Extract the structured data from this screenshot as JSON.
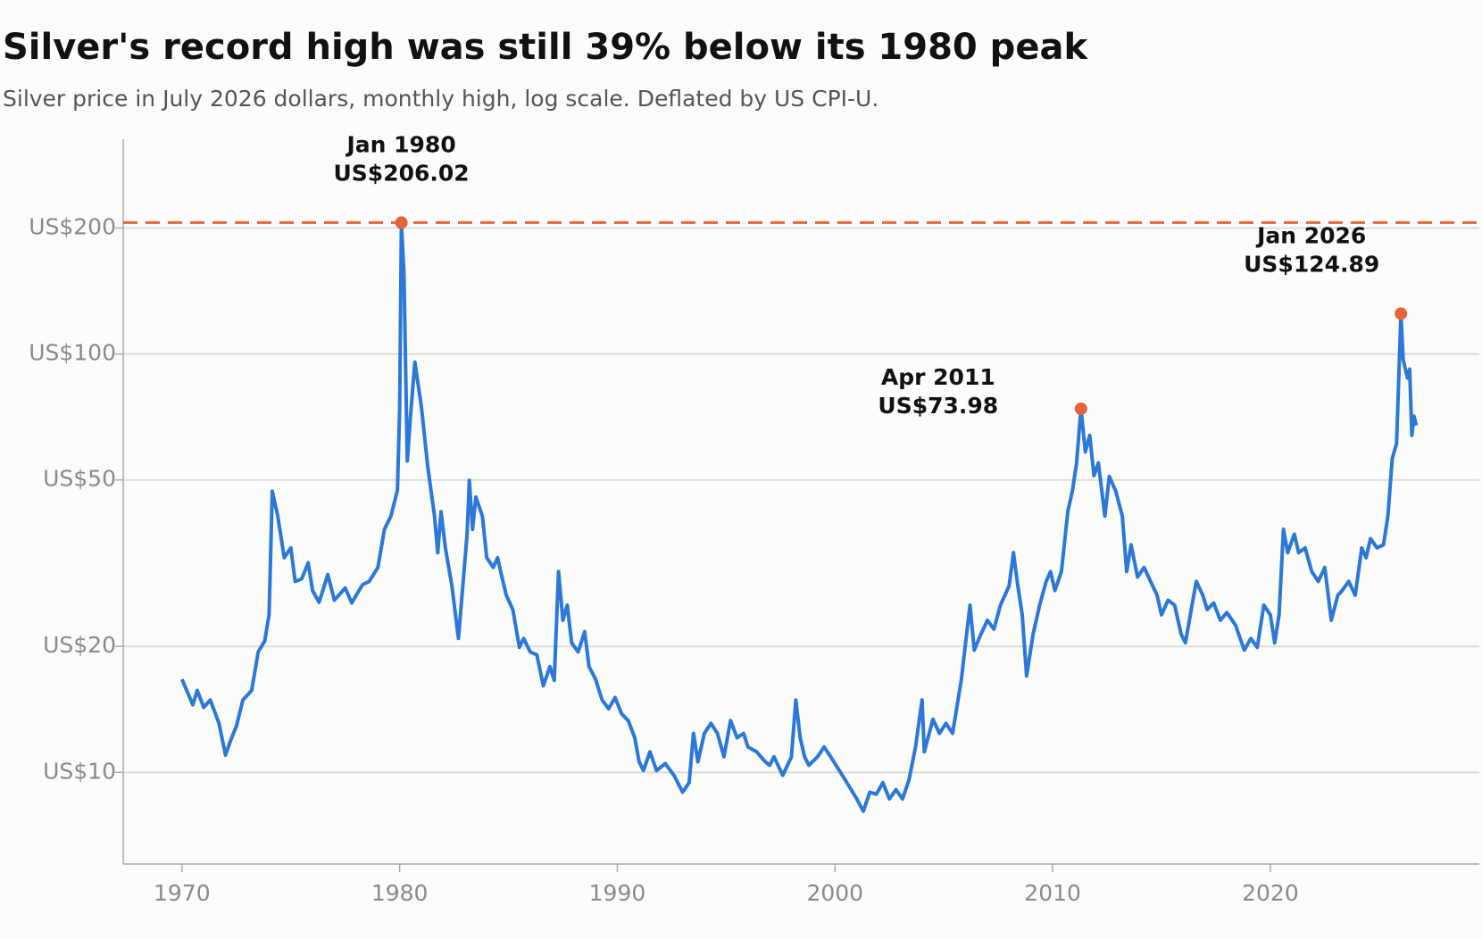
{
  "chart_data": {
    "type": "line",
    "title": "Silver's record high was still 39% below its 1980 peak",
    "subtitle": "Silver price in July 2026 dollars, monthly high, log scale. Deflated by US CPI-U.",
    "log_scale": true,
    "grid": true,
    "xlim": [
      1967.3,
      2029.6
    ],
    "xticks": [
      1970,
      1980,
      1990,
      2000,
      2010,
      2020
    ],
    "ylim": [
      6.04,
      326
    ],
    "yticks": [
      {
        "value": 10,
        "label": "US$10"
      },
      {
        "value": 20,
        "label": "US$20"
      },
      {
        "value": 50,
        "label": "US$50"
      },
      {
        "value": 100,
        "label": "US$100"
      },
      {
        "value": 200,
        "label": "US$200"
      }
    ],
    "series": [
      {
        "name": "Silver price",
        "color": "#2b78d8",
        "x": [
          1970.0,
          1970.5,
          1970.7,
          1971.0,
          1971.3,
          1971.7,
          1972.0,
          1972.2,
          1972.5,
          1972.8,
          1973.2,
          1973.5,
          1973.8,
          1974.0,
          1974.15,
          1974.4,
          1974.7,
          1975.0,
          1975.2,
          1975.5,
          1975.8,
          1976.0,
          1976.3,
          1976.7,
          1977.0,
          1977.5,
          1977.8,
          1978.0,
          1978.3,
          1978.6,
          1979.0,
          1979.3,
          1979.6,
          1979.9,
          1980.0,
          1980.08,
          1980.2,
          1980.35,
          1980.5,
          1980.7,
          1981.0,
          1981.3,
          1981.6,
          1981.75,
          1981.9,
          1982.1,
          1982.4,
          1982.7,
          1982.9,
          1983.1,
          1983.2,
          1983.35,
          1983.5,
          1983.8,
          1984.0,
          1984.3,
          1984.5,
          1984.7,
          1984.9,
          1985.2,
          1985.5,
          1985.7,
          1986.0,
          1986.3,
          1986.6,
          1986.9,
          1987.1,
          1987.3,
          1987.5,
          1987.7,
          1987.9,
          1988.2,
          1988.5,
          1988.7,
          1989.0,
          1989.3,
          1989.6,
          1989.9,
          1990.2,
          1990.5,
          1990.8,
          1991.0,
          1991.2,
          1991.5,
          1991.8,
          1992.2,
          1992.6,
          1993.0,
          1993.3,
          1993.5,
          1993.7,
          1994.0,
          1994.3,
          1994.6,
          1994.9,
          1995.2,
          1995.5,
          1995.8,
          1996.0,
          1996.4,
          1996.8,
          1997.0,
          1997.2,
          1997.6,
          1998.0,
          1998.2,
          1998.4,
          1998.6,
          1998.8,
          1999.2,
          1999.5,
          1999.8,
          2000.2,
          2000.6,
          2001.0,
          2001.3,
          2001.6,
          2001.9,
          2002.2,
          2002.5,
          2002.8,
          2003.1,
          2003.4,
          2003.7,
          2004.0,
          2004.1,
          2004.5,
          2004.8,
          2005.1,
          2005.4,
          2005.8,
          2006.2,
          2006.4,
          2006.7,
          2007.0,
          2007.3,
          2007.6,
          2008.0,
          2008.2,
          2008.4,
          2008.6,
          2008.8,
          2009.1,
          2009.4,
          2009.7,
          2009.9,
          2010.1,
          2010.4,
          2010.7,
          2010.9,
          2011.1,
          2011.3,
          2011.5,
          2011.7,
          2011.9,
          2012.1,
          2012.4,
          2012.6,
          2012.9,
          2013.2,
          2013.4,
          2013.6,
          2013.9,
          2014.2,
          2014.5,
          2014.8,
          2015.0,
          2015.3,
          2015.6,
          2015.9,
          2016.1,
          2016.4,
          2016.6,
          2016.9,
          2017.1,
          2017.4,
          2017.7,
          2018.0,
          2018.4,
          2018.8,
          2019.1,
          2019.4,
          2019.7,
          2020.0,
          2020.2,
          2020.4,
          2020.6,
          2020.8,
          2021.1,
          2021.3,
          2021.6,
          2021.9,
          2022.2,
          2022.5,
          2022.8,
          2023.1,
          2023.3,
          2023.6,
          2023.9,
          2024.2,
          2024.4,
          2024.6,
          2024.9,
          2025.2,
          2025.4,
          2025.6,
          2025.8,
          2026.0,
          2026.1,
          2026.3,
          2026.4,
          2026.5,
          2026.6,
          2026.7
        ],
        "values": [
          16.7,
          14.5,
          15.7,
          14.3,
          14.9,
          13.1,
          11.0,
          11.8,
          12.9,
          14.9,
          15.7,
          19.4,
          20.6,
          23.8,
          47,
          41,
          32.6,
          34.4,
          28.6,
          29,
          31.7,
          27.2,
          25.5,
          29.7,
          25.8,
          27.6,
          25.4,
          26.5,
          28.1,
          28.6,
          30.9,
          38.1,
          41,
          47.3,
          74.8,
          206.02,
          155,
          55.5,
          71,
          95.6,
          74.8,
          53.4,
          41,
          33.5,
          42,
          34.4,
          27.9,
          20.9,
          27.9,
          37.1,
          49.9,
          38.1,
          45.5,
          41,
          32.6,
          30.9,
          32.6,
          29.3,
          26.5,
          24.5,
          19.9,
          20.9,
          19.4,
          19.1,
          16.1,
          17.9,
          16.6,
          30.2,
          23.1,
          25.1,
          20.4,
          19.4,
          21.7,
          17.9,
          16.7,
          14.9,
          14.2,
          15.1,
          13.8,
          13.3,
          12.1,
          10.6,
          10.1,
          11.2,
          10.1,
          10.5,
          9.84,
          8.97,
          9.45,
          12.4,
          10.6,
          12.4,
          13.1,
          12.4,
          10.9,
          13.3,
          12.1,
          12.4,
          11.5,
          11.2,
          10.6,
          10.4,
          10.9,
          9.84,
          10.9,
          14.9,
          12.1,
          10.9,
          10.4,
          10.9,
          11.5,
          10.9,
          10.1,
          9.35,
          8.64,
          8.08,
          8.97,
          8.87,
          9.45,
          8.64,
          9.1,
          8.64,
          9.6,
          11.5,
          14.9,
          11.2,
          13.4,
          12.4,
          13.1,
          12.4,
          16.6,
          25.1,
          19.6,
          21.4,
          23.1,
          22.0,
          25.1,
          27.9,
          33.5,
          27.9,
          23.8,
          17.0,
          21.4,
          25.1,
          28.6,
          30.2,
          27.2,
          30.2,
          42.2,
          46.9,
          54.9,
          73.98,
          58.3,
          63.9,
          51.2,
          54.9,
          41,
          51,
          47,
          41,
          30.2,
          35,
          29.3,
          30.9,
          28.6,
          26.5,
          23.8,
          25.8,
          25.1,
          21.4,
          20.4,
          25.1,
          28.6,
          26.5,
          24.5,
          25.4,
          23.1,
          24.1,
          22.5,
          19.6,
          20.9,
          19.9,
          25.1,
          23.8,
          20.4,
          23.8,
          38.1,
          33.5,
          37.1,
          33.5,
          34.4,
          30.2,
          28.6,
          30.9,
          23.1,
          26.5,
          27.2,
          28.6,
          26.5,
          34.4,
          32.6,
          36.2,
          34.4,
          35,
          41,
          56.3,
          61,
          124.89,
          97,
          87.6,
          92,
          63.9,
          71,
          67.5
        ]
      }
    ],
    "annotations": [
      {
        "x": 1980.08,
        "value": 206.02,
        "date": "Jan 1980",
        "label": "US$206.02",
        "color": "#e5643a"
      },
      {
        "x": 2011.3,
        "value": 73.98,
        "date": "Apr 2011",
        "label": "US$73.98",
        "color": "#e5643a"
      },
      {
        "x": 2026.0,
        "value": 124.89,
        "date": "Jan 2026",
        "label": "US$124.89",
        "color": "#e5643a"
      }
    ]
  }
}
